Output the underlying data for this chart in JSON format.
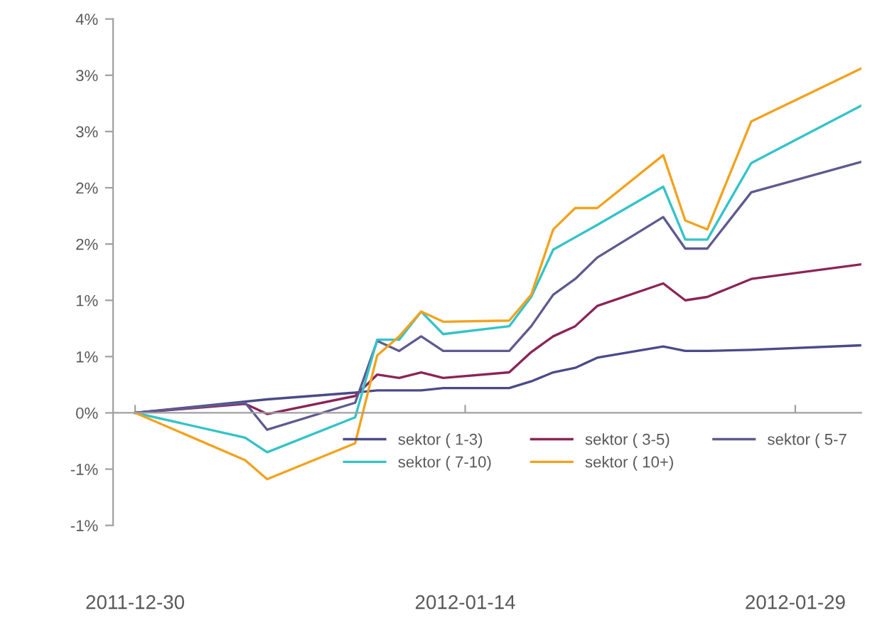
{
  "chart_data": {
    "type": "line",
    "x": [
      "2011-12-30",
      "2012-01-04",
      "2012-01-05",
      "2012-01-09",
      "2012-01-10",
      "2012-01-11",
      "2012-01-12",
      "2012-01-13",
      "2012-01-16",
      "2012-01-17",
      "2012-01-18",
      "2012-01-19",
      "2012-01-20",
      "2012-01-23",
      "2012-01-24",
      "2012-01-25",
      "2012-01-27",
      "2012-02-01"
    ],
    "series": [
      {
        "name": "sektor ( 1-3)",
        "color": "#4a4a8a",
        "values": [
          0,
          0.1,
          0.12,
          0.18,
          0.2,
          0.2,
          0.2,
          0.22,
          0.22,
          0.28,
          0.36,
          0.4,
          0.49,
          0.59,
          0.55,
          0.55,
          0.56,
          0.6
        ]
      },
      {
        "name": "sektor ( 3-5)",
        "color": "#8c2457",
        "values": [
          0,
          0.08,
          -0.01,
          0.15,
          0.34,
          0.31,
          0.36,
          0.31,
          0.36,
          0.54,
          0.68,
          0.77,
          0.95,
          1.15,
          1.0,
          1.03,
          1.19,
          1.32
        ]
      },
      {
        "name": "sektor ( 5-7",
        "color": "#5f5a8f",
        "values": [
          0,
          0.09,
          -0.15,
          0.09,
          0.64,
          0.55,
          0.68,
          0.55,
          0.55,
          0.77,
          1.05,
          1.19,
          1.38,
          1.74,
          1.46,
          1.46,
          1.96,
          2.23
        ]
      },
      {
        "name": "sektor ( 7-10)",
        "color": "#33c3c8",
        "values": [
          0,
          -0.22,
          -0.35,
          -0.04,
          0.65,
          0.65,
          0.9,
          0.7,
          0.77,
          1.03,
          1.45,
          1.56,
          1.67,
          2.01,
          1.54,
          1.54,
          2.22,
          2.73
        ]
      },
      {
        "name": "sektor ( 10+)",
        "color": "#f2a21e",
        "values": [
          0,
          -0.42,
          -0.59,
          -0.27,
          0.51,
          0.68,
          0.9,
          0.81,
          0.82,
          1.05,
          1.63,
          1.82,
          1.82,
          2.29,
          1.71,
          1.63,
          2.59,
          3.06
        ]
      }
    ],
    "xlim": [
      "2011-12-29",
      "2012-02-01"
    ],
    "xticks": [
      "2011-12-30",
      "2012-01-14",
      "2012-01-29"
    ],
    "ylim": [
      -1.0,
      3.5
    ],
    "yticks": [
      {
        "value": -1.0,
        "label": "-1%"
      },
      {
        "value": -0.5,
        "label": "-1%"
      },
      {
        "value": 0,
        "label": "0%"
      },
      {
        "value": 0.5,
        "label": "1%"
      },
      {
        "value": 1.0,
        "label": "1%"
      },
      {
        "value": 1.5,
        "label": "2%"
      },
      {
        "value": 2.0,
        "label": "2%"
      },
      {
        "value": 2.5,
        "label": "3%"
      },
      {
        "value": 3.0,
        "label": "3%"
      },
      {
        "value": 3.5,
        "label": "4%"
      }
    ],
    "legend": "bottom right",
    "marker": "none",
    "line_style": "solid"
  }
}
